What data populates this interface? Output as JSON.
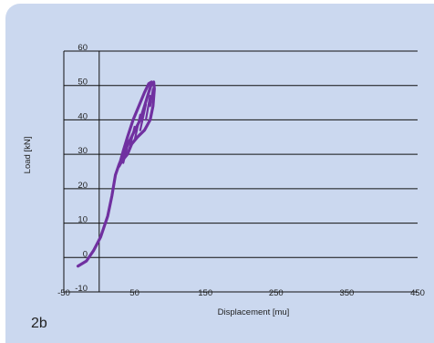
{
  "figure_label": "2b",
  "chart_data": {
    "type": "line",
    "title": "",
    "xlabel": "Displacement [mu]",
    "ylabel": "Load [kN]",
    "xlim": [
      -50,
      450
    ],
    "ylim": [
      -10,
      60
    ],
    "x_ticks": [
      -50,
      50,
      150,
      250,
      350,
      450
    ],
    "y_ticks": [
      -10,
      0,
      10,
      20,
      30,
      40,
      50,
      60
    ],
    "grid": {
      "horizontal": true,
      "vertical": false
    },
    "line_color": "#7030a0",
    "series": [
      {
        "points": [
          [
            -30,
            -2.5
          ],
          [
            -18,
            -1
          ],
          [
            -8,
            2
          ],
          [
            2,
            6
          ],
          [
            12,
            12
          ],
          [
            18,
            18
          ],
          [
            23,
            24
          ],
          [
            28,
            27
          ],
          [
            36,
            31
          ],
          [
            48,
            36
          ],
          [
            58,
            40
          ],
          [
            64,
            44
          ],
          [
            70,
            48
          ],
          [
            74,
            50.5
          ],
          [
            77,
            51
          ],
          [
            78,
            49
          ],
          [
            76,
            44
          ],
          [
            72,
            40
          ],
          [
            64,
            37
          ],
          [
            54,
            35
          ],
          [
            46,
            33
          ],
          [
            40,
            30
          ],
          [
            36,
            29
          ],
          [
            32,
            28
          ],
          [
            28,
            26.5
          ],
          [
            34,
            31
          ],
          [
            40,
            35
          ],
          [
            48,
            40
          ],
          [
            56,
            44
          ],
          [
            64,
            48
          ],
          [
            70,
            50.5
          ],
          [
            74,
            51
          ]
        ]
      }
    ],
    "hatch_lines": [
      [
        [
          34,
          27.5
        ],
        [
          42,
          34
        ]
      ],
      [
        [
          42,
          31
        ],
        [
          50,
          38
        ]
      ],
      [
        [
          50,
          34
        ],
        [
          58,
          41.5
        ]
      ],
      [
        [
          58,
          37
        ],
        [
          66,
          44.5
        ]
      ],
      [
        [
          66,
          40
        ],
        [
          72,
          47
        ]
      ],
      [
        [
          72,
          44
        ],
        [
          76,
          49
        ]
      ]
    ]
  }
}
